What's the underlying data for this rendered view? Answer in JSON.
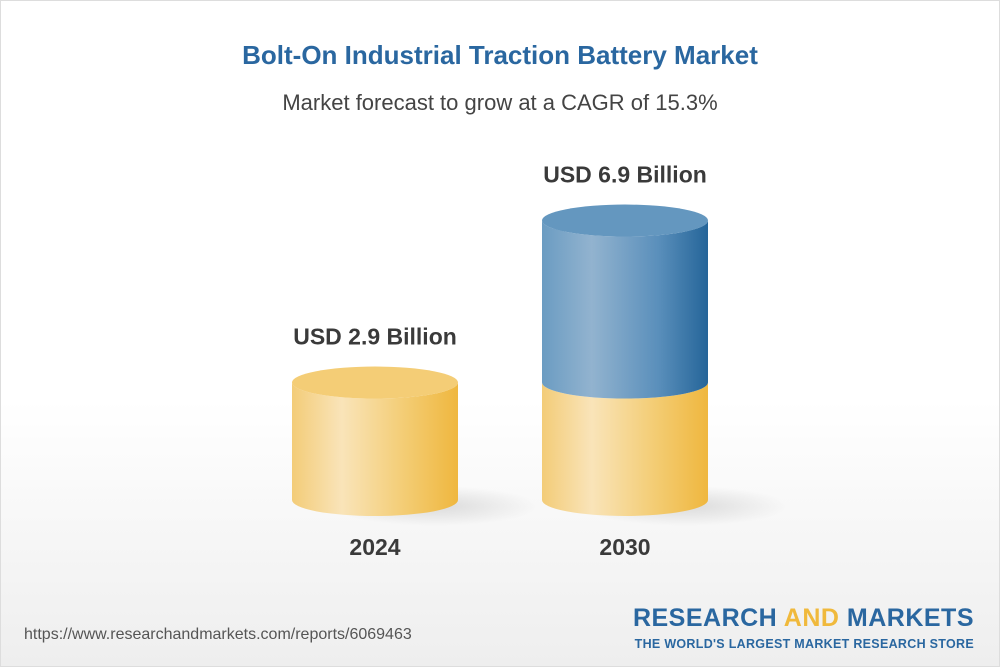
{
  "title": "Bolt-On Industrial Traction Battery Market",
  "subtitle": "Market forecast to grow at a CAGR of 15.3%",
  "chart_data": {
    "type": "bar",
    "style": "3d-cylinder",
    "categories": [
      "2024",
      "2030"
    ],
    "values": [
      2.9,
      6.9
    ],
    "value_labels": [
      "USD 2.9 Billion",
      "USD 6.9 Billion"
    ],
    "unit": "USD Billion",
    "colors": {
      "base": "#f2c25a",
      "growth": "#2c6aa0"
    }
  },
  "footer": {
    "url": "https://www.researchandmarkets.com/reports/6069463",
    "logo_part1": "RESEARCH ",
    "logo_part2": "AND",
    "logo_part3": " MARKETS",
    "tagline": "THE WORLD'S LARGEST MARKET RESEARCH STORE"
  }
}
